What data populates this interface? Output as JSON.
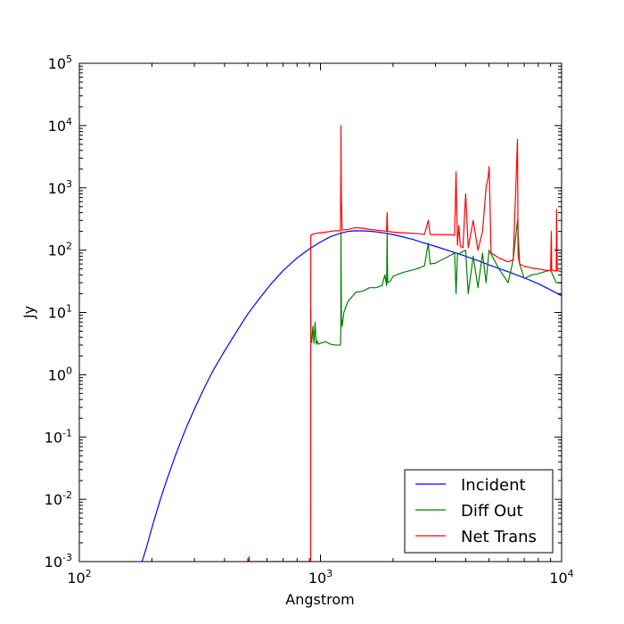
{
  "chart_data": {
    "type": "line",
    "xscale": "log",
    "yscale": "log",
    "xlabel": "Angstrom",
    "ylabel": "Jy",
    "xlim": [
      100,
      10000
    ],
    "ylim": [
      0.001,
      100000
    ],
    "grid": false,
    "legend_position": "lower-right",
    "x_ticks": [
      {
        "value": 100,
        "base": "10",
        "exp": "2"
      },
      {
        "value": 1000,
        "base": "10",
        "exp": "3"
      },
      {
        "value": 10000,
        "base": "10",
        "exp": "4"
      }
    ],
    "y_ticks": [
      {
        "value": 0.001,
        "base": "10",
        "exp": "-3"
      },
      {
        "value": 0.01,
        "base": "10",
        "exp": "-2"
      },
      {
        "value": 0.1,
        "base": "10",
        "exp": "-1"
      },
      {
        "value": 1,
        "base": "10",
        "exp": "0"
      },
      {
        "value": 10,
        "base": "10",
        "exp": "1"
      },
      {
        "value": 100,
        "base": "10",
        "exp": "2"
      },
      {
        "value": 1000,
        "base": "10",
        "exp": "3"
      },
      {
        "value": 10000,
        "base": "10",
        "exp": "4"
      },
      {
        "value": 100000,
        "base": "10",
        "exp": "5"
      }
    ],
    "series": [
      {
        "name": "Incident",
        "color": "#0000ff",
        "x": [
          182,
          190,
          200,
          215,
          230,
          250,
          275,
          300,
          330,
          360,
          400,
          450,
          500,
          560,
          630,
          700,
          800,
          900,
          1000,
          1100,
          1200,
          1300,
          1400,
          1550,
          1700,
          1900,
          2100,
          2400,
          2700,
          3000,
          3500,
          4000,
          4500,
          5000,
          6000,
          7000,
          8000,
          9000,
          10000
        ],
        "y": [
          0.001,
          0.0017,
          0.0035,
          0.009,
          0.02,
          0.05,
          0.13,
          0.28,
          0.62,
          1.2,
          2.4,
          5.0,
          9.5,
          17,
          30,
          47,
          75,
          105,
          135,
          165,
          185,
          200,
          205,
          203,
          197,
          185,
          170,
          150,
          130,
          115,
          95,
          80,
          68,
          58,
          45,
          36,
          29,
          23,
          18.5
        ]
      },
      {
        "name": "Diff Out",
        "color": "#008000",
        "x": [
          912,
          913,
          920,
          930,
          940,
          950,
          960,
          970,
          980,
          1000,
          1050,
          1100,
          1150,
          1200,
          1210,
          1215,
          1216,
          1222,
          1230,
          1250,
          1300,
          1400,
          1500,
          1600,
          1700,
          1800,
          1850,
          1880,
          1890,
          1900,
          1950,
          2000,
          2200,
          2500,
          2700,
          2800,
          2850,
          3000,
          3300,
          3600,
          3650,
          3700,
          3800,
          4000,
          4100,
          4300,
          4500,
          4700,
          4861,
          5000,
          5500,
          6000,
          6300,
          6563,
          6700,
          7000,
          7500,
          8000,
          8500,
          9000,
          9500,
          10000
        ],
        "y": [
          11,
          3.3,
          3.3,
          6.0,
          3.2,
          7.0,
          3.1,
          3.5,
          3.1,
          3.2,
          3.4,
          3.1,
          3.0,
          3.0,
          3.0,
          5.0,
          200,
          8.0,
          6.0,
          10,
          15,
          21,
          22,
          25,
          25,
          27,
          40,
          27,
          190,
          30,
          32,
          38,
          44,
          50,
          56,
          130,
          60,
          62,
          75,
          90,
          20,
          85,
          90,
          100,
          20,
          80,
          25,
          90,
          30,
          100,
          50,
          30,
          70,
          300,
          60,
          35,
          40,
          42,
          45,
          48,
          30,
          30
        ]
      },
      {
        "name": "Net Trans",
        "color": "#ff0000",
        "x": [
          505,
          506,
          507,
          911,
          912,
          913,
          930,
          950,
          1000,
          1050,
          1100,
          1150,
          1200,
          1210,
          1215,
          1216,
          1220,
          1230,
          1300,
          1400,
          1500,
          1600,
          1700,
          1800,
          1880,
          1890,
          1900,
          2000,
          2200,
          2500,
          2700,
          2800,
          2850,
          3000,
          3300,
          3600,
          3650,
          3700,
          3750,
          3800,
          3900,
          4000,
          4100,
          4300,
          4500,
          4700,
          4861,
          4959,
          5007,
          5100,
          5500,
          6000,
          6300,
          6563,
          6600,
          6700,
          7000,
          7500,
          8000,
          8500,
          9000,
          9069,
          9100,
          9500,
          9532,
          9600,
          10000
        ],
        "y": [
          0.001,
          0.0012,
          0.001,
          0.001,
          170,
          175,
          180,
          185,
          190,
          195,
          200,
          205,
          205,
          210,
          2000,
          10000,
          800,
          210,
          215,
          230,
          225,
          215,
          210,
          205,
          200,
          400,
          200,
          195,
          190,
          185,
          180,
          300,
          180,
          178,
          178,
          175,
          1800,
          120,
          250,
          115,
          110,
          800,
          110,
          300,
          100,
          200,
          1000,
          1500,
          2200,
          90,
          75,
          65,
          70,
          6000,
          80,
          60,
          55,
          52,
          50,
          48,
          47,
          200,
          48,
          46,
          450,
          47,
          45
        ]
      }
    ]
  }
}
